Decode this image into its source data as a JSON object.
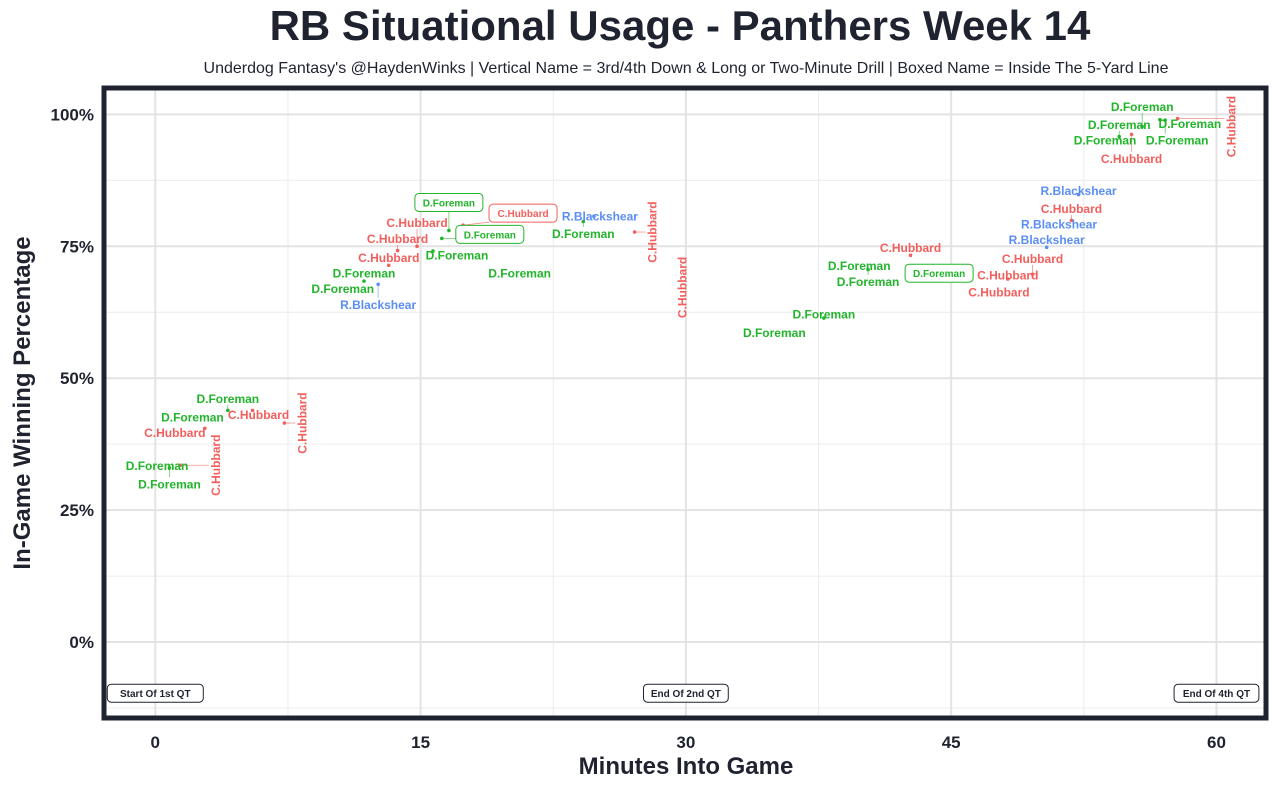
{
  "chart_data": {
    "type": "scatter",
    "title": "RB Situational Usage - Panthers Week 14",
    "subtitle": "Underdog Fantasy's @HaydenWinks | Vertical Name = 3rd/4th Down & Long or Two-Minute Drill | Boxed Name = Inside The 5-Yard Line",
    "xlabel": "Minutes Into Game",
    "ylabel": "In-Game Winning Percentage",
    "xlim": [
      -2.9,
      62.8
    ],
    "ylim": [
      -14.4,
      105
    ],
    "x_ticks": [
      0,
      15,
      30,
      45,
      60
    ],
    "x_tick_labels": [
      "0",
      "15",
      "30",
      "45",
      "60"
    ],
    "y_ticks": [
      0,
      25,
      50,
      75,
      100
    ],
    "y_tick_labels": [
      "0%",
      "25%",
      "50%",
      "75%",
      "100%"
    ],
    "grid": true,
    "colors": {
      "D.Foreman": "#22b52b",
      "C.Hubbard": "#f25f5c",
      "R.Blackshear": "#5b8ef5"
    },
    "annotations": [
      {
        "x": 0,
        "y": -9.7,
        "text": "Start Of 1st QT"
      },
      {
        "x": 30,
        "y": -9.7,
        "text": "End Of 2nd QT"
      },
      {
        "x": 60,
        "y": -9.7,
        "text": "End Of 4th QT"
      }
    ],
    "points": [
      {
        "player": "D.Foreman",
        "x": 0.1,
        "y": 33.5,
        "style": "normal"
      },
      {
        "player": "D.Foreman",
        "x": 0.8,
        "y": 33.0,
        "style": "normal"
      },
      {
        "player": "C.Hubbard",
        "x": 1.4,
        "y": 33.5,
        "style": "vertical"
      },
      {
        "player": "D.Foreman",
        "x": 2.1,
        "y": 42.6,
        "style": "normal"
      },
      {
        "player": "C.Hubbard",
        "x": 2.8,
        "y": 40.5,
        "style": "normal"
      },
      {
        "player": "D.Foreman",
        "x": 4.1,
        "y": 43.9,
        "style": "normal"
      },
      {
        "player": "C.Hubbard",
        "x": 5.5,
        "y": 43.9,
        "style": "normal"
      },
      {
        "player": "C.Hubbard",
        "x": 7.3,
        "y": 41.5,
        "style": "vertical"
      },
      {
        "player": "D.Foreman",
        "x": 10.6,
        "y": 67.0,
        "style": "normal"
      },
      {
        "player": "D.Foreman",
        "x": 11.8,
        "y": 68.4,
        "style": "normal"
      },
      {
        "player": "R.Blackshear",
        "x": 12.6,
        "y": 67.8,
        "style": "normal"
      },
      {
        "player": "C.Hubbard",
        "x": 13.2,
        "y": 71.4,
        "style": "normal"
      },
      {
        "player": "C.Hubbard",
        "x": 13.7,
        "y": 74.2,
        "style": "normal"
      },
      {
        "player": "C.Hubbard",
        "x": 14.8,
        "y": 75.0,
        "style": "normal"
      },
      {
        "player": "D.Foreman",
        "x": 15.7,
        "y": 74.1,
        "style": "normal"
      },
      {
        "player": "D.Foreman",
        "x": 16.2,
        "y": 76.5,
        "style": "boxed"
      },
      {
        "player": "D.Foreman",
        "x": 16.6,
        "y": 78.0,
        "style": "boxed"
      },
      {
        "player": "C.Hubbard",
        "x": 17.4,
        "y": 79.0,
        "style": "boxed"
      },
      {
        "player": "D.Foreman",
        "x": 20.6,
        "y": 69.9,
        "style": "normal"
      },
      {
        "player": "R.Blackshear",
        "x": 24.8,
        "y": 80.7,
        "style": "normal"
      },
      {
        "player": "D.Foreman",
        "x": 24.2,
        "y": 79.7,
        "style": "normal"
      },
      {
        "player": "C.Hubbard",
        "x": 27.1,
        "y": 77.7,
        "style": "vertical"
      },
      {
        "player": "C.Hubbard",
        "x": 29.8,
        "y": 67.2,
        "style": "vertical"
      },
      {
        "player": "D.Foreman",
        "x": 35.0,
        "y": 58.7,
        "style": "normal"
      },
      {
        "player": "D.Foreman",
        "x": 37.8,
        "y": 61.4,
        "style": "normal"
      },
      {
        "player": "D.Foreman",
        "x": 39.8,
        "y": 71.4,
        "style": "normal"
      },
      {
        "player": "D.Foreman",
        "x": 40.3,
        "y": 70.6,
        "style": "normal"
      },
      {
        "player": "C.Hubbard",
        "x": 42.7,
        "y": 73.3,
        "style": "normal"
      },
      {
        "player": "D.Foreman",
        "x": 43.3,
        "y": 69.9,
        "style": "boxed"
      },
      {
        "player": "C.Hubbard",
        "x": 47.7,
        "y": 66.3,
        "style": "normal"
      },
      {
        "player": "C.Hubbard",
        "x": 48.2,
        "y": 68.8,
        "style": "normal"
      },
      {
        "player": "C.Hubbard",
        "x": 49.6,
        "y": 69.7,
        "style": "normal"
      },
      {
        "player": "R.Blackshear",
        "x": 50.4,
        "y": 74.8,
        "style": "normal"
      },
      {
        "player": "R.Blackshear",
        "x": 51.1,
        "y": 79.2,
        "style": "normal"
      },
      {
        "player": "C.Hubbard",
        "x": 51.8,
        "y": 79.9,
        "style": "normal"
      },
      {
        "player": "R.Blackshear",
        "x": 52.2,
        "y": 84.8,
        "style": "normal"
      },
      {
        "player": "D.Foreman",
        "x": 53.7,
        "y": 95.1,
        "style": "normal"
      },
      {
        "player": "D.Foreman",
        "x": 54.5,
        "y": 95.8,
        "style": "normal"
      },
      {
        "player": "C.Hubbard",
        "x": 55.2,
        "y": 96.2,
        "style": "normal"
      },
      {
        "player": "D.Foreman",
        "x": 55.8,
        "y": 97.7,
        "style": "normal"
      },
      {
        "player": "D.Foreman",
        "x": 56.8,
        "y": 99.0,
        "style": "normal"
      },
      {
        "player": "D.Foreman",
        "x": 57.1,
        "y": 98.9,
        "style": "normal"
      },
      {
        "player": "C.Hubbard",
        "x": 57.8,
        "y": 99.2,
        "style": "vertical"
      }
    ]
  }
}
